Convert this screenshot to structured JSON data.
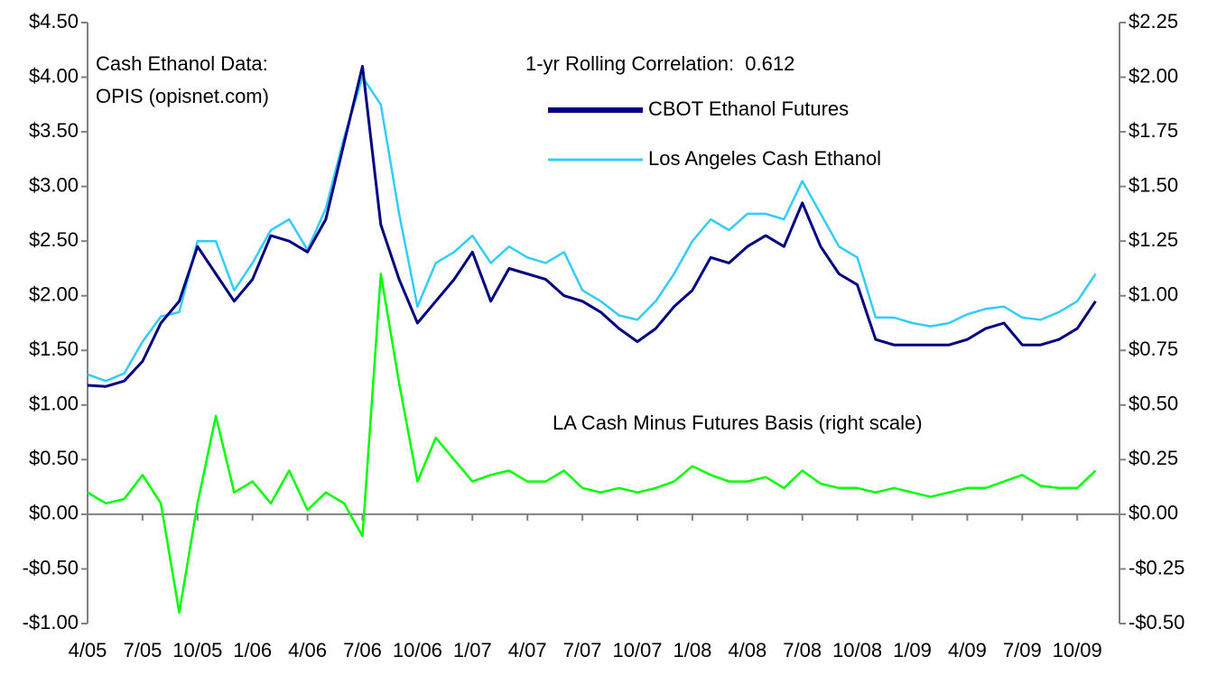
{
  "chart_data": {
    "type": "line",
    "annotations": [
      "Cash Ethanol Data:",
      "OPIS (opisnet.com)",
      "1-yr Rolling Correlation:  0.612"
    ],
    "x": [
      "4/05",
      "5/05",
      "6/05",
      "7/05",
      "8/05",
      "9/05",
      "10/05",
      "11/05",
      "12/05",
      "1/06",
      "2/06",
      "3/06",
      "4/06",
      "5/06",
      "6/06",
      "7/06",
      "8/06",
      "9/06",
      "10/06",
      "11/06",
      "12/06",
      "1/07",
      "2/07",
      "3/07",
      "4/07",
      "5/07",
      "6/07",
      "7/07",
      "8/07",
      "9/07",
      "10/07",
      "11/07",
      "12/07",
      "1/08",
      "2/08",
      "3/08",
      "4/08",
      "5/08",
      "6/08",
      "7/08",
      "8/08",
      "9/08",
      "10/08",
      "11/08",
      "12/08",
      "1/09",
      "2/09",
      "3/09",
      "4/09",
      "5/09",
      "6/09",
      "7/09",
      "8/09",
      "9/09",
      "10/09",
      "11/09"
    ],
    "xticks": [
      "4/05",
      "7/05",
      "10/05",
      "1/06",
      "4/06",
      "7/06",
      "10/06",
      "1/07",
      "4/07",
      "7/07",
      "10/07",
      "1/08",
      "4/08",
      "7/08",
      "10/08",
      "1/09",
      "4/09",
      "7/09",
      "10/09"
    ],
    "series": [
      {
        "name": "CBOT Ethanol Futures",
        "color": "#000080",
        "values": [
          1.18,
          1.17,
          1.22,
          1.4,
          1.75,
          1.95,
          2.45,
          2.2,
          1.95,
          2.15,
          2.55,
          2.5,
          2.4,
          2.7,
          3.4,
          4.1,
          2.65,
          2.15,
          1.75,
          1.95,
          2.15,
          2.4,
          1.95,
          2.25,
          2.2,
          2.15,
          2.0,
          1.95,
          1.85,
          1.7,
          1.58,
          1.7,
          1.9,
          2.05,
          2.35,
          2.3,
          2.45,
          2.55,
          2.45,
          2.85,
          2.45,
          2.2,
          2.1,
          1.6,
          1.55,
          1.55,
          1.55,
          1.55,
          1.6,
          1.7,
          1.75,
          1.55,
          1.55,
          1.6,
          1.7,
          1.95
        ]
      },
      {
        "name": "Los Angeles Cash Ethanol",
        "color": "#33ccff",
        "values": [
          1.28,
          1.22,
          1.29,
          1.58,
          1.81,
          1.85,
          2.5,
          2.5,
          2.05,
          2.3,
          2.6,
          2.7,
          2.42,
          2.8,
          3.45,
          4.0,
          3.75,
          2.75,
          1.9,
          2.3,
          2.4,
          2.55,
          2.3,
          2.45,
          2.35,
          2.3,
          2.4,
          2.05,
          1.95,
          1.82,
          1.78,
          1.95,
          2.2,
          2.5,
          2.7,
          2.6,
          2.75,
          2.75,
          2.7,
          3.05,
          2.75,
          2.45,
          2.35,
          1.8,
          1.8,
          1.75,
          1.72,
          1.75,
          1.83,
          1.88,
          1.9,
          1.8,
          1.78,
          1.85,
          1.95,
          2.2
        ]
      },
      {
        "name": "LA Cash Minus Futures Basis (right scale)",
        "color": "#00ff00",
        "axis": "y2",
        "values": [
          0.1,
          0.05,
          0.07,
          0.18,
          0.05,
          -0.45,
          0.05,
          0.45,
          0.1,
          0.15,
          0.05,
          0.2,
          0.02,
          0.1,
          0.05,
          -0.1,
          1.1,
          0.6,
          0.15,
          0.35,
          0.25,
          0.15,
          0.18,
          0.2,
          0.15,
          0.15,
          0.2,
          0.12,
          0.1,
          0.12,
          0.1,
          0.12,
          0.15,
          0.22,
          0.18,
          0.15,
          0.15,
          0.17,
          0.12,
          0.2,
          0.14,
          0.12,
          0.12,
          0.1,
          0.12,
          0.1,
          0.08,
          0.1,
          0.12,
          0.12,
          0.15,
          0.18,
          0.13,
          0.12,
          0.12,
          0.2
        ]
      }
    ],
    "ylim": [
      -1.0,
      4.5
    ],
    "yticks": [
      {
        "value": 4.5,
        "label": "$4.50"
      },
      {
        "value": 4.0,
        "label": "$4.00"
      },
      {
        "value": 3.5,
        "label": "$3.50"
      },
      {
        "value": 3.0,
        "label": "$3.00"
      },
      {
        "value": 2.5,
        "label": "$2.50"
      },
      {
        "value": 2.0,
        "label": "$2.00"
      },
      {
        "value": 1.5,
        "label": "$1.50"
      },
      {
        "value": 1.0,
        "label": "$1.00"
      },
      {
        "value": 0.5,
        "label": "$0.50"
      },
      {
        "value": 0,
        "label": "$0.00"
      },
      {
        "value": -0.5,
        "label": "-$0.50"
      },
      {
        "value": -1.0,
        "label": "-$1.00"
      }
    ],
    "y2lim": [
      -0.5,
      2.25
    ],
    "y2ticks": [
      {
        "value": 2.25,
        "label": "$2.25"
      },
      {
        "value": 2.0,
        "label": "$2.00"
      },
      {
        "value": 1.75,
        "label": "$1.75"
      },
      {
        "value": 1.5,
        "label": "$1.50"
      },
      {
        "value": 1.25,
        "label": "$1.25"
      },
      {
        "value": 1.0,
        "label": "$1.00"
      },
      {
        "value": 0.75,
        "label": "$0.75"
      },
      {
        "value": 0.5,
        "label": "$0.50"
      },
      {
        "value": 0.25,
        "label": "$0.25"
      },
      {
        "value": 0,
        "label": "$0.00"
      },
      {
        "value": -0.25,
        "label": "-$0.25"
      },
      {
        "value": -0.5,
        "label": "-$0.50"
      }
    ],
    "grid": false
  }
}
